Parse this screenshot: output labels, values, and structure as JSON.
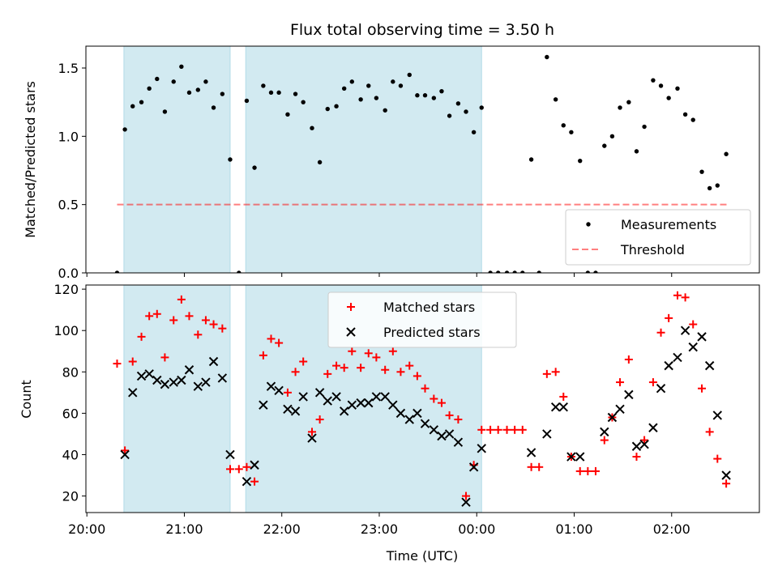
{
  "chart_data": {
    "type": "scatter",
    "title": "Flux total observing time = 3.50 h",
    "xlabel": "Time (UTC)",
    "x_tick_labels": [
      "20:00",
      "21:00",
      "22:00",
      "23:00",
      "00:00",
      "01:00",
      "02:00"
    ],
    "x_tick_hours": [
      0,
      1,
      2,
      3,
      4,
      5,
      6
    ],
    "xlim_hours": [
      -0.01,
      6.9
    ],
    "shaded_spans_hours": [
      [
        0.38,
        1.47
      ],
      [
        1.63,
        4.05
      ]
    ],
    "shade_color": "#add8e6",
    "panels": [
      {
        "ylabel": "Matched/Predicted stars",
        "ylim": [
          0,
          1.66
        ],
        "yticks": [
          0.0,
          0.5,
          1.0,
          1.5
        ],
        "ytick_labels": [
          "0.0",
          "0.5",
          "1.0",
          "1.5"
        ],
        "threshold": {
          "value": 0.5,
          "x_range_hours": [
            0.31,
            6.59
          ],
          "color": "#ff0000",
          "opacity": 0.5
        },
        "legend": {
          "placement": "lower right",
          "entries": [
            "Measurements",
            "Threshold"
          ]
        },
        "series": [
          {
            "name": "Measurements",
            "marker": "dot",
            "color": "#000000",
            "points": [
              [
                0.31,
                0.0
              ],
              [
                0.39,
                1.05
              ],
              [
                0.47,
                1.22
              ],
              [
                0.56,
                1.25
              ],
              [
                0.64,
                1.35
              ],
              [
                0.72,
                1.42
              ],
              [
                0.8,
                1.18
              ],
              [
                0.89,
                1.4
              ],
              [
                0.97,
                1.51
              ],
              [
                1.05,
                1.32
              ],
              [
                1.14,
                1.34
              ],
              [
                1.22,
                1.4
              ],
              [
                1.3,
                1.21
              ],
              [
                1.39,
                1.31
              ],
              [
                1.47,
                0.83
              ],
              [
                1.56,
                0.0
              ],
              [
                1.64,
                1.26
              ],
              [
                1.72,
                0.77
              ],
              [
                1.81,
                1.37
              ],
              [
                1.89,
                1.32
              ],
              [
                1.97,
                1.32
              ],
              [
                2.06,
                1.16
              ],
              [
                2.14,
                1.31
              ],
              [
                2.22,
                1.25
              ],
              [
                2.31,
                1.06
              ],
              [
                2.39,
                0.81
              ],
              [
                2.47,
                1.2
              ],
              [
                2.56,
                1.22
              ],
              [
                2.64,
                1.35
              ],
              [
                2.72,
                1.4
              ],
              [
                2.81,
                1.27
              ],
              [
                2.89,
                1.37
              ],
              [
                2.97,
                1.28
              ],
              [
                3.06,
                1.19
              ],
              [
                3.14,
                1.4
              ],
              [
                3.22,
                1.37
              ],
              [
                3.31,
                1.45
              ],
              [
                3.39,
                1.3
              ],
              [
                3.47,
                1.3
              ],
              [
                3.56,
                1.28
              ],
              [
                3.64,
                1.33
              ],
              [
                3.72,
                1.15
              ],
              [
                3.81,
                1.24
              ],
              [
                3.89,
                1.18
              ],
              [
                3.97,
                1.03
              ],
              [
                4.05,
                1.21
              ],
              [
                4.14,
                0.0
              ],
              [
                4.22,
                0.0
              ],
              [
                4.31,
                0.0
              ],
              [
                4.39,
                0.0
              ],
              [
                4.47,
                0.0
              ],
              [
                4.56,
                0.83
              ],
              [
                4.64,
                0.0
              ],
              [
                4.72,
                1.58
              ],
              [
                4.81,
                1.27
              ],
              [
                4.89,
                1.08
              ],
              [
                4.97,
                1.03
              ],
              [
                5.06,
                0.82
              ],
              [
                5.14,
                0.0
              ],
              [
                5.22,
                0.0
              ],
              [
                5.31,
                0.93
              ],
              [
                5.39,
                1.0
              ],
              [
                5.47,
                1.21
              ],
              [
                5.56,
                1.25
              ],
              [
                5.64,
                0.89
              ],
              [
                5.72,
                1.07
              ],
              [
                5.81,
                1.41
              ],
              [
                5.89,
                1.37
              ],
              [
                5.97,
                1.28
              ],
              [
                6.06,
                1.35
              ],
              [
                6.14,
                1.16
              ],
              [
                6.22,
                1.12
              ],
              [
                6.31,
                0.74
              ],
              [
                6.39,
                0.62
              ],
              [
                6.47,
                0.64
              ],
              [
                6.56,
                0.87
              ]
            ]
          }
        ]
      },
      {
        "ylabel": "Count",
        "ylim": [
          12,
          122
        ],
        "yticks": [
          20,
          40,
          60,
          80,
          100,
          120
        ],
        "ytick_labels": [
          "20",
          "40",
          "60",
          "80",
          "100",
          "120"
        ],
        "legend": {
          "placement": "upper center",
          "entries": [
            "Matched stars",
            "Predicted stars"
          ]
        },
        "series": [
          {
            "name": "Matched stars",
            "marker": "plus",
            "color": "#ff0000",
            "points": [
              [
                0.31,
                84
              ],
              [
                0.39,
                42
              ],
              [
                0.47,
                85
              ],
              [
                0.56,
                97
              ],
              [
                0.64,
                107
              ],
              [
                0.72,
                108
              ],
              [
                0.8,
                87
              ],
              [
                0.89,
                105
              ],
              [
                0.97,
                115
              ],
              [
                1.05,
                107
              ],
              [
                1.14,
                98
              ],
              [
                1.22,
                105
              ],
              [
                1.3,
                103
              ],
              [
                1.39,
                101
              ],
              [
                1.47,
                33
              ],
              [
                1.56,
                33
              ],
              [
                1.64,
                34
              ],
              [
                1.72,
                27
              ],
              [
                1.81,
                88
              ],
              [
                1.89,
                96
              ],
              [
                1.97,
                94
              ],
              [
                2.06,
                70
              ],
              [
                2.14,
                80
              ],
              [
                2.22,
                85
              ],
              [
                2.31,
                51
              ],
              [
                2.39,
                57
              ],
              [
                2.47,
                79
              ],
              [
                2.56,
                83
              ],
              [
                2.64,
                82
              ],
              [
                2.72,
                90
              ],
              [
                2.81,
                82
              ],
              [
                2.89,
                89
              ],
              [
                2.97,
                87
              ],
              [
                3.06,
                81
              ],
              [
                3.14,
                90
              ],
              [
                3.22,
                80
              ],
              [
                3.31,
                83
              ],
              [
                3.39,
                78
              ],
              [
                3.47,
                72
              ],
              [
                3.56,
                67
              ],
              [
                3.64,
                65
              ],
              [
                3.72,
                59
              ],
              [
                3.81,
                57
              ],
              [
                3.89,
                20
              ],
              [
                3.97,
                35
              ],
              [
                4.05,
                52
              ],
              [
                4.14,
                52
              ],
              [
                4.22,
                52
              ],
              [
                4.31,
                52
              ],
              [
                4.39,
                52
              ],
              [
                4.47,
                52
              ],
              [
                4.56,
                34
              ],
              [
                4.64,
                34
              ],
              [
                4.72,
                79
              ],
              [
                4.81,
                80
              ],
              [
                4.89,
                68
              ],
              [
                4.97,
                39
              ],
              [
                5.06,
                32
              ],
              [
                5.14,
                32
              ],
              [
                5.22,
                32
              ],
              [
                5.31,
                47
              ],
              [
                5.39,
                58
              ],
              [
                5.47,
                75
              ],
              [
                5.56,
                86
              ],
              [
                5.64,
                39
              ],
              [
                5.72,
                47
              ],
              [
                5.81,
                75
              ],
              [
                5.89,
                99
              ],
              [
                5.97,
                106
              ],
              [
                6.06,
                117
              ],
              [
                6.14,
                116
              ],
              [
                6.22,
                103
              ],
              [
                6.31,
                72
              ],
              [
                6.39,
                51
              ],
              [
                6.47,
                38
              ],
              [
                6.56,
                26
              ]
            ]
          },
          {
            "name": "Predicted stars",
            "marker": "x",
            "color": "#000000",
            "points": [
              [
                0.39,
                40
              ],
              [
                0.47,
                70
              ],
              [
                0.56,
                78
              ],
              [
                0.64,
                79
              ],
              [
                0.72,
                76
              ],
              [
                0.8,
                74
              ],
              [
                0.89,
                75
              ],
              [
                0.97,
                76
              ],
              [
                1.05,
                81
              ],
              [
                1.14,
                73
              ],
              [
                1.22,
                75
              ],
              [
                1.3,
                85
              ],
              [
                1.39,
                77
              ],
              [
                1.47,
                40
              ],
              [
                1.64,
                27
              ],
              [
                1.72,
                35
              ],
              [
                1.81,
                64
              ],
              [
                1.89,
                73
              ],
              [
                1.97,
                71
              ],
              [
                2.06,
                62
              ],
              [
                2.14,
                61
              ],
              [
                2.22,
                68
              ],
              [
                2.31,
                48
              ],
              [
                2.39,
                70
              ],
              [
                2.47,
                66
              ],
              [
                2.56,
                68
              ],
              [
                2.64,
                61
              ],
              [
                2.72,
                64
              ],
              [
                2.81,
                65
              ],
              [
                2.89,
                65
              ],
              [
                2.97,
                68
              ],
              [
                3.06,
                68
              ],
              [
                3.14,
                64
              ],
              [
                3.22,
                60
              ],
              [
                3.31,
                57
              ],
              [
                3.39,
                60
              ],
              [
                3.47,
                55
              ],
              [
                3.56,
                52
              ],
              [
                3.64,
                49
              ],
              [
                3.72,
                50
              ],
              [
                3.81,
                46
              ],
              [
                3.89,
                17
              ],
              [
                3.97,
                34
              ],
              [
                4.05,
                43
              ],
              [
                4.56,
                41
              ],
              [
                4.72,
                50
              ],
              [
                4.81,
                63
              ],
              [
                4.89,
                63
              ],
              [
                4.97,
                39
              ],
              [
                5.06,
                39
              ],
              [
                5.31,
                51
              ],
              [
                5.39,
                58
              ],
              [
                5.47,
                62
              ],
              [
                5.56,
                69
              ],
              [
                5.64,
                44
              ],
              [
                5.72,
                45
              ],
              [
                5.81,
                53
              ],
              [
                5.89,
                72
              ],
              [
                5.97,
                83
              ],
              [
                6.06,
                87
              ],
              [
                6.14,
                100
              ],
              [
                6.22,
                92
              ],
              [
                6.31,
                97
              ],
              [
                6.39,
                83
              ],
              [
                6.47,
                59
              ],
              [
                6.56,
                30
              ]
            ]
          }
        ]
      }
    ]
  }
}
